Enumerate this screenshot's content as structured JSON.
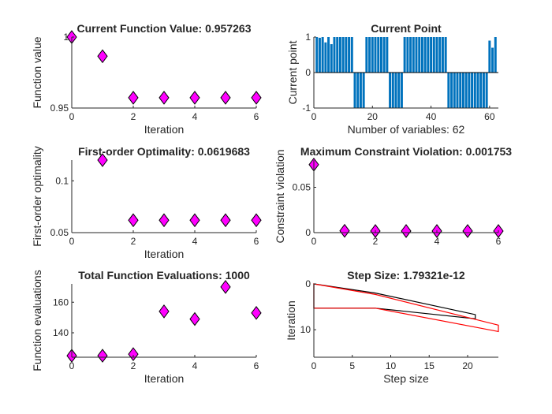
{
  "colors": {
    "marker_fill": "#ff00ff",
    "bar": "#0072bd",
    "step_old": "#000000",
    "step_new": "#ff0000",
    "axis": "#262626"
  },
  "chart_data": [
    {
      "type": "scatter",
      "marker": "diamond",
      "title": "Current Function Value: 0.957263",
      "xlabel": "Iteration",
      "ylabel": "Function value",
      "xlim": [
        0,
        6
      ],
      "ylim": [
        0.95,
        1.0
      ],
      "xticks": [
        "0",
        "2",
        "4",
        "6"
      ],
      "yticks": [
        "0.95",
        "1"
      ],
      "x": [
        0,
        1,
        2,
        3,
        4,
        5,
        6
      ],
      "y": [
        1.0,
        0.9865,
        0.957263,
        0.957263,
        0.957263,
        0.957263,
        0.957263
      ]
    },
    {
      "type": "bar",
      "title": "Current Point",
      "xlabel": "Number of variables: 62",
      "ylabel": "Current point",
      "xlim": [
        0,
        63
      ],
      "ylim": [
        -1,
        1
      ],
      "xticks": [
        "0",
        "20",
        "40",
        "60"
      ],
      "yticks": [
        "-1",
        "0",
        "1"
      ],
      "x": [
        1,
        2,
        3,
        4,
        5,
        6,
        7,
        8,
        9,
        10,
        11,
        12,
        13,
        14,
        15,
        16,
        17,
        18,
        19,
        20,
        21,
        22,
        23,
        24,
        25,
        26,
        27,
        28,
        29,
        30,
        31,
        32,
        33,
        34,
        35,
        36,
        37,
        38,
        39,
        40,
        41,
        42,
        43,
        44,
        45,
        46,
        47,
        48,
        49,
        50,
        51,
        52,
        53,
        54,
        55,
        56,
        57,
        58,
        59,
        60,
        61,
        62
      ],
      "values": [
        1,
        0.98,
        1,
        0.85,
        1,
        0.8,
        1,
        1,
        1,
        1,
        1,
        1,
        1,
        -1,
        -1,
        -1,
        -1,
        1,
        1,
        1,
        1,
        1,
        1,
        1,
        1,
        -1,
        -1,
        -1,
        -1,
        -1,
        1,
        1,
        1,
        1,
        1,
        1,
        1,
        1,
        1,
        1,
        1,
        1,
        1,
        1,
        1,
        -1,
        -1,
        -1,
        -1,
        -1,
        -1,
        -1,
        -1,
        -1,
        -1,
        -1,
        -1,
        -1,
        -1,
        0.9,
        0.7,
        1
      ]
    },
    {
      "type": "scatter",
      "marker": "diamond",
      "title": "First-order Optimality: 0.0619683",
      "xlabel": "Iteration",
      "ylabel": "First-order optimality",
      "xlim": [
        0,
        6
      ],
      "ylim": [
        0.05,
        0.12
      ],
      "xticks": [
        "0",
        "2",
        "4",
        "6"
      ],
      "yticks": [
        "0.05",
        "0.1"
      ],
      "x": [
        1,
        2,
        3,
        4,
        5,
        6
      ],
      "y": [
        0.12,
        0.0619683,
        0.0619683,
        0.0619683,
        0.0619683,
        0.0619683
      ]
    },
    {
      "type": "scatter",
      "marker": "diamond",
      "title": "Maximum Constraint Violation: 0.001753",
      "xlabel": "",
      "ylabel": "Constraint violation",
      "xlim": [
        0,
        6
      ],
      "ylim": [
        0,
        0.08
      ],
      "xticks": [
        "0",
        "2",
        "4",
        "6"
      ],
      "yticks": [
        "0",
        "0.05"
      ],
      "x": [
        0,
        1,
        2,
        3,
        4,
        5,
        6
      ],
      "y": [
        0.075,
        0.002,
        0.001753,
        0.001753,
        0.001753,
        0.001753,
        0.001753
      ]
    },
    {
      "type": "scatter",
      "marker": "diamond",
      "title": "Total Function Evaluations: 1000",
      "xlabel": "Iteration",
      "ylabel": "Function evaluations",
      "xlim": [
        0,
        6
      ],
      "ylim": [
        124,
        172
      ],
      "xticks": [
        "0",
        "2",
        "4",
        "6"
      ],
      "yticks": [
        "140",
        "160"
      ],
      "x": [
        0,
        1,
        2,
        3,
        4,
        5,
        6
      ],
      "y": [
        125,
        125,
        126,
        154,
        149,
        170,
        153
      ]
    },
    {
      "type": "bar",
      "orientation": "horizontal",
      "style": "outline",
      "title": "Step Size: 1.79321e-12",
      "xlabel": "Step size",
      "ylabel": "Iteration",
      "xlim": [
        0,
        24
      ],
      "ylim": [
        0,
        16
      ],
      "xticks": [
        "0",
        "5",
        "10",
        "15",
        "20"
      ],
      "yticks": [
        "0",
        "10"
      ],
      "series": [
        {
          "polygon": [
            [
              0,
              0
            ],
            [
              8,
              2
            ],
            [
              21,
              6.7
            ],
            [
              21,
              7.6
            ],
            [
              8,
              5.3
            ],
            [
              0,
              5.3
            ]
          ]
        },
        {
          "polygon": [
            [
              0,
              0
            ],
            [
              8,
              2.3
            ],
            [
              24,
              9
            ],
            [
              24,
              10.4
            ],
            [
              8,
              5.3
            ],
            [
              0,
              5.3
            ]
          ]
        }
      ]
    }
  ]
}
